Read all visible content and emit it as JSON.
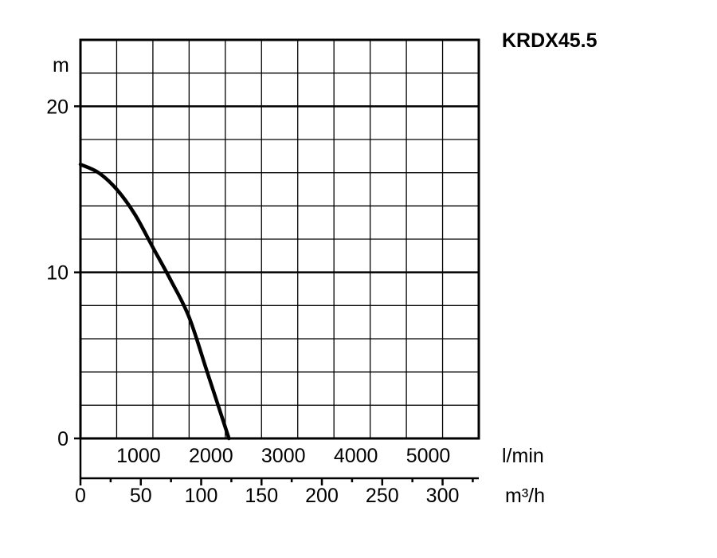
{
  "chart_data": {
    "type": "line",
    "title": "KRDX45.5",
    "ylabel": "m",
    "x_unit_primary": "l/min",
    "x_unit_secondary": "m³/h",
    "ylim": [
      0,
      24
    ],
    "xlim_lmin": [
      0,
      5500
    ],
    "y_ticks": [
      "0",
      "10",
      "20"
    ],
    "x_ticks_lmin": [
      "1000",
      "2000",
      "3000",
      "4000",
      "5000"
    ],
    "x_ticks_m3h": [
      "0",
      "50",
      "100",
      "150",
      "200",
      "250",
      "300"
    ],
    "grid": true,
    "series": [
      {
        "x": [
          0,
          250,
          500,
          750,
          1000,
          1250,
          1500,
          1750,
          2050
        ],
        "y": [
          16.5,
          16.0,
          15.0,
          13.5,
          11.5,
          9.5,
          7.3,
          4.0,
          0
        ]
      }
    ]
  }
}
